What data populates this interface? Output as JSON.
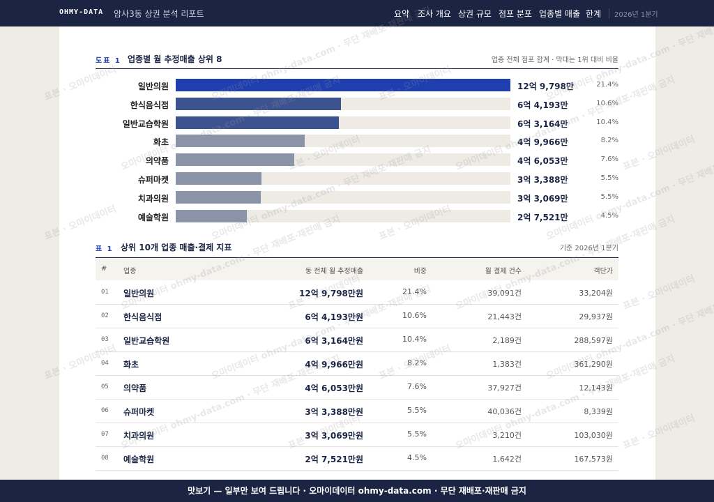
{
  "nav": {
    "logo": "OHMY-DATA",
    "title": "암사3동 상권 분석 리포트",
    "links": [
      "요약",
      "조사 개요",
      "상권 규모",
      "점포 분포",
      "업종별 매출",
      "한계"
    ],
    "period": "2026년 1분기"
  },
  "figure": {
    "label": "도표 1",
    "title": "업종별 월 추정매출 상위 8",
    "note": "업종 전체 점포 합계 · 막대는 1위 대비 비율",
    "bars": {
      "categories": [
        "일반의원",
        "한식음식점",
        "일반교습학원",
        "화초",
        "의약품",
        "슈퍼마켓",
        "치과의원",
        "예술학원"
      ],
      "values": [
        129798,
        64193,
        63164,
        49966,
        46053,
        33388,
        33069,
        27521
      ],
      "value_labels": [
        "12억 9,798만",
        "6억 4,193만",
        "6억 3,164만",
        "4억 9,966만",
        "4억 6,053만",
        "3억 3,388만",
        "3억 3,069만",
        "2억 7,521만"
      ],
      "shares": [
        "21.4%",
        "10.6%",
        "10.4%",
        "8.2%",
        "7.6%",
        "5.5%",
        "5.5%",
        "4.5%"
      ],
      "colors": [
        "#1f3fb0",
        "#3d5390",
        "#3d5390",
        "#8a93a8",
        "#8a93a8",
        "#8a93a8",
        "#8a93a8",
        "#8a93a8"
      ]
    }
  },
  "table": {
    "label": "표 1",
    "title": "상위 10개 업종 매출·결제 지표",
    "note": "기준 2026년 1분기",
    "columns": [
      "#",
      "업종",
      "동 전체 월 추정매출",
      "비중",
      "월 결제 건수",
      "객단가"
    ],
    "rows": [
      [
        "01",
        "일반의원",
        "12억 9,798만원",
        "21.4%",
        "39,091건",
        "33,204원"
      ],
      [
        "02",
        "한식음식점",
        "6억 4,193만원",
        "10.6%",
        "21,443건",
        "29,937원"
      ],
      [
        "03",
        "일반교습학원",
        "6억 3,164만원",
        "10.4%",
        "2,189건",
        "288,597원"
      ],
      [
        "04",
        "화초",
        "4억 9,966만원",
        "8.2%",
        "1,383건",
        "361,290원"
      ],
      [
        "05",
        "의약품",
        "4억 6,053만원",
        "7.6%",
        "37,927건",
        "12,143원"
      ],
      [
        "06",
        "슈퍼마켓",
        "3억 3,388만원",
        "5.5%",
        "40,036건",
        "8,339원"
      ],
      [
        "07",
        "치과의원",
        "3억 3,069만원",
        "5.5%",
        "3,210건",
        "103,030원"
      ],
      [
        "08",
        "예술학원",
        "2억 7,521만원",
        "4.5%",
        "1,642건",
        "167,573원"
      ]
    ]
  },
  "watermarks": [
    "표본 · 오마이데이터",
    "오마이데이터 ohmy-data.com · 무단 재배포·재판매 금지"
  ],
  "footer": "맛보기 — 일부만 보여 드립니다 · 오마이데이터 ohmy-data.com · 무단 재배포·재판매 금지"
}
